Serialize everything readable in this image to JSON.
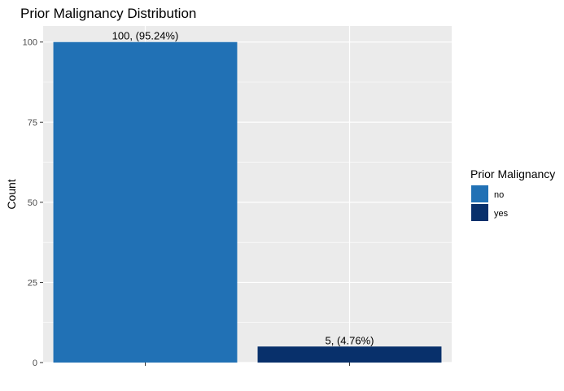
{
  "chart_data": {
    "type": "bar",
    "title": "Prior Malignancy Distribution",
    "xlabel": "",
    "ylabel": "Count",
    "categories": [
      "no",
      "yes"
    ],
    "values": [
      100,
      5
    ],
    "data_labels": [
      "100, (95.24%)",
      "5, (4.76%)"
    ],
    "colors": [
      "#2171b5",
      "#08306b"
    ],
    "ylim": [
      0,
      105
    ],
    "yticks": [
      0,
      25,
      50,
      75,
      100
    ],
    "grid": true,
    "panel_background": "#ebebeb",
    "legend": {
      "title": "Prior Malignancy",
      "placement": "right",
      "entries": [
        {
          "label": "no",
          "color": "#2171b5"
        },
        {
          "label": "yes",
          "color": "#08306b"
        }
      ]
    }
  }
}
